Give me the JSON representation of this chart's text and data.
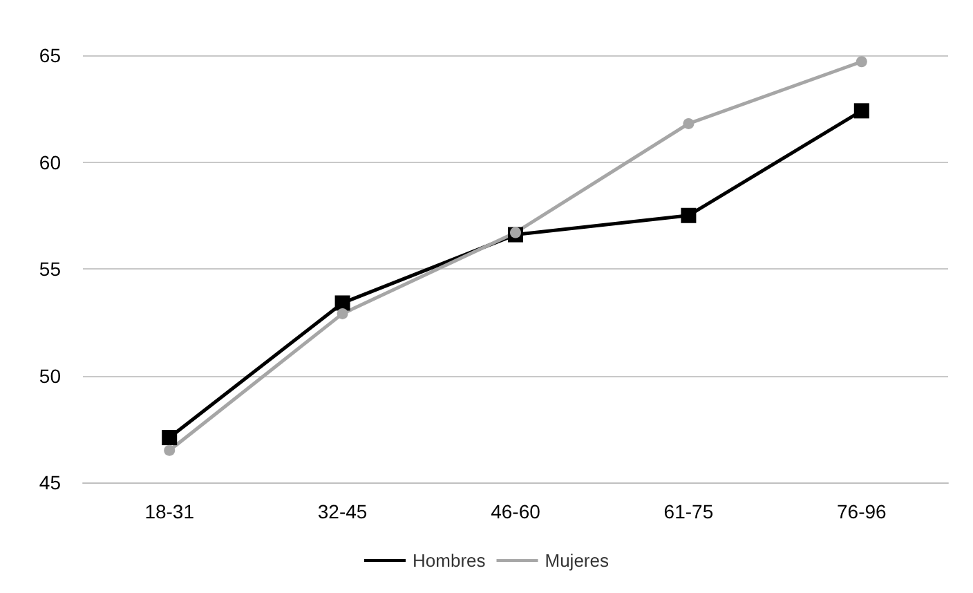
{
  "chart_data": {
    "type": "line",
    "categories": [
      "18-31",
      "32-45",
      "46-60",
      "61-75",
      "76-96"
    ],
    "series": [
      {
        "name": "Hombres",
        "color": "#000000",
        "marker": "square",
        "values": [
          47.1,
          53.4,
          56.6,
          57.5,
          62.4
        ]
      },
      {
        "name": "Mujeres",
        "color": "#a6a6a6",
        "marker": "circle",
        "values": [
          46.5,
          52.9,
          56.7,
          61.8,
          64.7
        ]
      }
    ],
    "ylim": [
      45,
      65
    ],
    "yticks": [
      45,
      50,
      55,
      60,
      65
    ],
    "grid": "y",
    "legend": "bottom",
    "line_style": "solid"
  }
}
